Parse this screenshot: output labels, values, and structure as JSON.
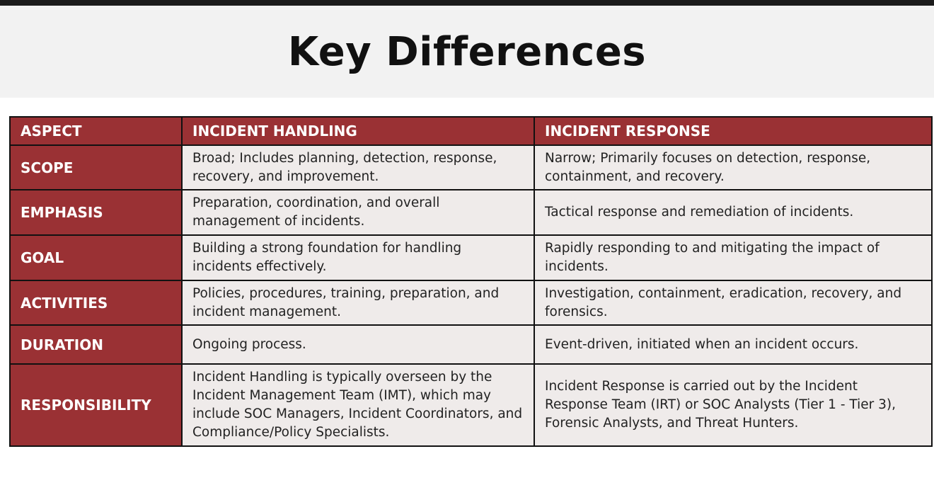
{
  "title": "Key Differences",
  "table": {
    "headers": [
      "ASPECT",
      "INCIDENT HANDLING",
      "INCIDENT RESPONSE"
    ],
    "rows": [
      {
        "aspect": "SCOPE",
        "handling": "Broad; Includes planning, detection, response, recovery, and improvement.",
        "response": "Narrow; Primarily focuses on detection, response, containment, and recovery."
      },
      {
        "aspect": "EMPHASIS",
        "handling": "Preparation, coordination, and overall management of incidents.",
        "response": "Tactical response and remediation of incidents."
      },
      {
        "aspect": "GOAL",
        "handling": "Building a strong foundation for handling incidents effectively.",
        "response": "Rapidly responding to and mitigating the impact of incidents."
      },
      {
        "aspect": "ACTIVITIES",
        "handling": "Policies, procedures, training, preparation, and incident management.",
        "response": "Investigation, containment, eradication, recovery, and forensics."
      },
      {
        "aspect": "DURATION",
        "handling": "Ongoing process.",
        "response": "Event-driven, initiated when an incident occurs."
      },
      {
        "aspect": "RESPONSIBILITY",
        "handling": "Incident Handling is typically overseen by the Incident Management Team (IMT), which may include SOC Managers, Incident Coordinators, and Compliance/Policy Specialists.",
        "response": "Incident Response is carried out by the Incident Response Team (IRT) or SOC Analysts (Tier 1 - Tier 3), Forensic Analysts, and Threat Hunters."
      }
    ]
  }
}
